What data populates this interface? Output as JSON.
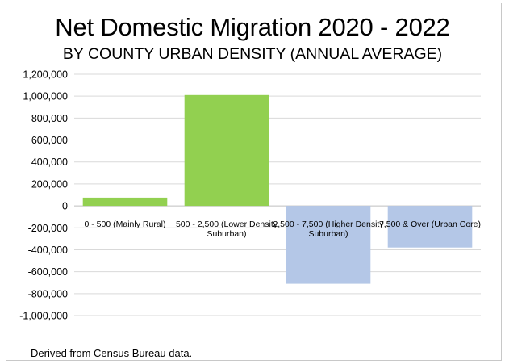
{
  "title": "Net Domestic Migration 2020 - 2022",
  "subtitle": "BY COUNTY URBAN DENSITY (ANNUAL AVERAGE)",
  "footer": "Derived from Census Bureau data.",
  "colors": {
    "positive": "#92d050",
    "negative": "#b4c7e7",
    "grid": "#d9d9d9"
  },
  "chart_data": {
    "type": "bar",
    "title": "Net Domestic Migration 2020 - 2022",
    "subtitle": "BY COUNTY URBAN DENSITY (ANNUAL AVERAGE)",
    "categories": [
      [
        "0 - 500 (Mainly Rural)"
      ],
      [
        "500 - 2,500 (Lower Density",
        "Suburban)"
      ],
      [
        "2,500 - 7,500 (Higher Density",
        "Suburban)"
      ],
      [
        "7,500 & Over (Urban Core)"
      ]
    ],
    "values": [
      75000,
      1010000,
      -710000,
      -380000
    ],
    "ylim": [
      -1000000,
      1200000
    ],
    "yticks": [
      1200000,
      1000000,
      800000,
      600000,
      400000,
      200000,
      0,
      -200000,
      -400000,
      -600000,
      -800000,
      -1000000
    ],
    "ytick_labels": [
      "1,200,000",
      "1,000,000",
      "800,000",
      "600,000",
      "400,000",
      "200,000",
      "0",
      "-200,000",
      "-400,000",
      "-600,000",
      "-800,000",
      "-1,000,000"
    ],
    "grid": true,
    "legend": "none"
  }
}
